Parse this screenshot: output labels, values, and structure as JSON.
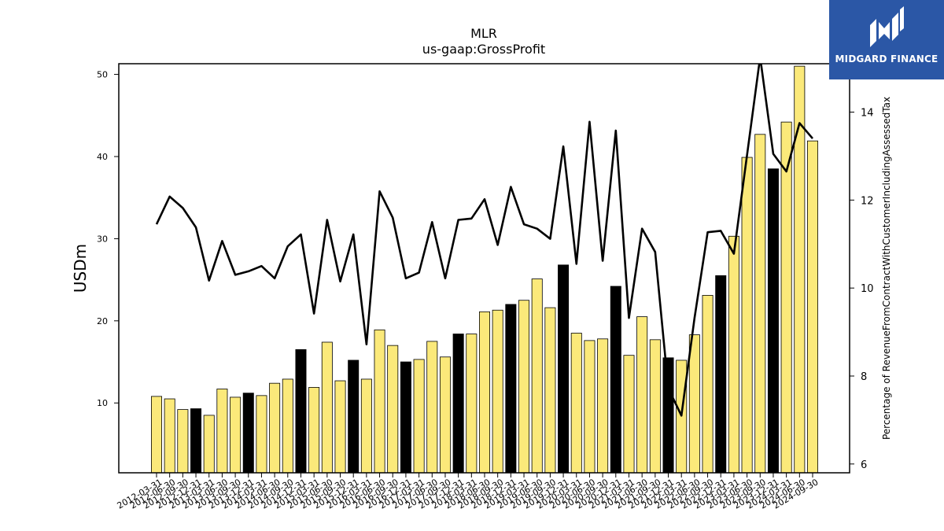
{
  "brand": {
    "name": "MIDGARD FINANCE",
    "logo_icon": "midgard-m-logo-icon",
    "background_color": "#2b57a6"
  },
  "chart_data": {
    "type": "bar",
    "title": "MLR",
    "subtitle": "us-gaap:GrossProfit",
    "ylabel": "USDm",
    "y2label": "Percentage of RevenueFromContractWithCustomerIncludingAssessedTax",
    "ylim": [
      1.5,
      51.3
    ],
    "y2lim": [
      5.8,
      15.1
    ],
    "yticks": [
      10,
      20,
      30,
      40,
      50
    ],
    "y2ticks": [
      6,
      8,
      10,
      12,
      14
    ],
    "grid": false,
    "colors": {
      "bar": "#fbe97a",
      "bar_highlight": "#000000",
      "line": "#000000"
    },
    "categories": [
      "2012-03-31",
      "2012-06-30",
      "2012-09-30",
      "2012-12-31",
      "2013-03-31",
      "2013-06-30",
      "2013-09-30",
      "2013-12-31",
      "2014-03-31",
      "2014-06-30",
      "2014-09-30",
      "2014-12-31",
      "2015-03-31",
      "2015-06-30",
      "2015-09-30",
      "2015-12-31",
      "2016-03-31",
      "2016-06-30",
      "2016-09-30",
      "2016-12-31",
      "2017-03-31",
      "2017-06-30",
      "2017-09-30",
      "2017-12-31",
      "2018-03-31",
      "2018-06-30",
      "2018-09-30",
      "2018-12-31",
      "2019-03-31",
      "2019-06-30",
      "2019-09-30",
      "2019-12-31",
      "2020-03-31",
      "2020-06-30",
      "2020-09-30",
      "2020-12-31",
      "2021-03-31",
      "2021-06-30",
      "2021-09-30",
      "2021-12-31",
      "2022-03-31",
      "2022-06-30",
      "2022-09-30",
      "2022-12-31",
      "2023-03-31",
      "2023-06-30",
      "2023-09-30",
      "2023-12-31",
      "2024-03-31",
      "2024-06-30",
      "2024-09-30"
    ],
    "series": [
      {
        "type": "bar",
        "axis": "left",
        "values": [
          10.8,
          10.5,
          9.2,
          9.3,
          8.5,
          11.7,
          10.7,
          11.2,
          10.9,
          12.4,
          12.9,
          16.5,
          11.9,
          17.4,
          12.7,
          15.2,
          12.9,
          18.9,
          17.0,
          15.0,
          15.3,
          17.5,
          15.6,
          18.4,
          18.4,
          21.1,
          21.3,
          22.0,
          22.5,
          25.1,
          21.6,
          26.8,
          18.5,
          17.6,
          17.8,
          24.2,
          15.8,
          20.5,
          17.7,
          15.5,
          15.2,
          18.3,
          23.1,
          25.5,
          30.3,
          39.9,
          42.7,
          38.5,
          44.2,
          51.0,
          41.9
        ],
        "highlight": [
          false,
          false,
          false,
          true,
          false,
          false,
          false,
          true,
          false,
          false,
          false,
          true,
          false,
          false,
          false,
          true,
          false,
          false,
          false,
          true,
          false,
          false,
          false,
          true,
          false,
          false,
          false,
          true,
          false,
          false,
          false,
          true,
          false,
          false,
          false,
          true,
          false,
          false,
          false,
          true,
          false,
          false,
          false,
          true,
          false,
          false,
          false,
          true,
          false,
          false,
          false
        ]
      },
      {
        "type": "line",
        "axis": "right",
        "values": [
          11.45,
          12.08,
          11.82,
          11.38,
          10.17,
          11.07,
          10.3,
          10.38,
          10.5,
          10.22,
          10.95,
          11.22,
          9.42,
          11.55,
          10.15,
          11.22,
          8.72,
          12.2,
          11.6,
          10.22,
          10.35,
          11.5,
          10.22,
          11.55,
          11.58,
          12.02,
          10.98,
          12.3,
          11.45,
          11.35,
          11.12,
          13.22,
          10.55,
          13.78,
          10.62,
          13.58,
          9.32,
          11.35,
          10.82,
          7.72,
          7.1,
          9.32,
          11.27,
          11.3,
          10.78,
          13.02,
          15.25,
          13.05,
          12.65,
          13.75,
          13.4
        ]
      }
    ]
  }
}
